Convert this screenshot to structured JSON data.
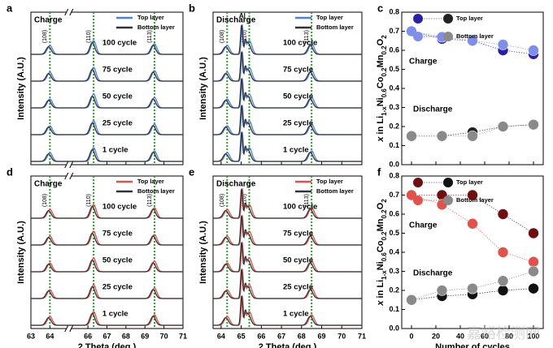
{
  "chart_data": [
    {
      "panel_label": "a",
      "type": "xrd",
      "title": "Charge",
      "ylabel": "Intensity (A.U.)",
      "xlim": [
        63,
        71
      ],
      "xticks": [
        63,
        64,
        66,
        67,
        68,
        69,
        70,
        71
      ],
      "xtick_labels": false,
      "axis_break": 65,
      "series": [
        {
          "name": "Top layer",
          "color": "#4f7fe0"
        },
        {
          "name": "Bottom layer",
          "color": "#333333"
        }
      ],
      "cycles": [
        "100 cycle",
        "75 cycle",
        "50 cycle",
        "25 cycle",
        "1 cycle"
      ],
      "peaks": [
        {
          "label": "(108)",
          "position": 64
        },
        {
          "label": "(110)",
          "position": 66.3
        },
        {
          "label": "(113)",
          "position": 69.5
        }
      ],
      "reference_color": "#2ca02c"
    },
    {
      "panel_label": "b",
      "type": "xrd",
      "title": "Discharge",
      "ylabel": "Intensity (A.U.)",
      "xlim": [
        63.6,
        71
      ],
      "xticks": [
        64,
        65,
        66,
        67,
        68,
        69,
        70,
        71
      ],
      "xtick_labels": false,
      "al_label": "Al",
      "al_position": 65.05,
      "series": [
        {
          "name": "Top layer",
          "color": "#4f7fe0"
        },
        {
          "name": "Bottom layer",
          "color": "#333333"
        }
      ],
      "cycles": [
        "100 cycle",
        "75 cycle",
        "50 cycle",
        "25 cycle",
        "1 cycle"
      ],
      "peaks": [
        {
          "label": "(108)",
          "position": 64.3
        },
        {
          "label": "(110)",
          "position": 65.4
        },
        {
          "label": "(113)",
          "position": 68.5
        }
      ],
      "reference_color": "#2ca02c"
    },
    {
      "panel_label": "c",
      "type": "line",
      "ylabel_parts": [
        "x",
        " in Li",
        "1-x",
        "Ni",
        "0.6",
        "Co",
        "0.2",
        "Mn",
        "0.2",
        "O",
        "2"
      ],
      "x": [
        0,
        25,
        50,
        75,
        100
      ],
      "xlim": [
        -8,
        108
      ],
      "xticks": [
        0,
        20,
        40,
        60,
        80,
        100
      ],
      "xtick_labels": false,
      "ylim": [
        0,
        0.8
      ],
      "yticks": [
        {
          "value": 0,
          "label": "0.0"
        },
        {
          "value": 0.1,
          "label": "0.1"
        },
        {
          "value": 0.2,
          "label": "0.2"
        },
        {
          "value": 0.3,
          "label": "0.3"
        },
        {
          "value": 0.4,
          "label": "0.4"
        },
        {
          "value": 0.5,
          "label": "0.5"
        },
        {
          "value": 0.6,
          "label": "0.6"
        },
        {
          "value": 0.7,
          "label": "0.7"
        },
        {
          "value": 0.8,
          "label": "0.8"
        }
      ],
      "annotations": [
        "Charge",
        "Discharge"
      ],
      "series": [
        {
          "name": "Top layer",
          "color": "#2b1fa8",
          "values": [
            0.7,
            0.66,
            0.65,
            0.6,
            0.58
          ]
        },
        {
          "name": "Bottom layer",
          "color": "#7f8fe8",
          "values": [
            0.7,
            0.67,
            0.65,
            0.63,
            0.6
          ]
        },
        {
          "color": "#222222",
          "values": [
            0.15,
            0.15,
            0.17,
            0.2,
            0.21
          ]
        },
        {
          "color": "#8a8a8a",
          "values": [
            0.15,
            0.15,
            0.15,
            0.2,
            0.21
          ]
        }
      ]
    },
    {
      "panel_label": "d",
      "type": "xrd",
      "title": "Charge",
      "ylabel": "Intensity (A.U.)",
      "xlabel": "2 Theta (deg.)",
      "xlim": [
        63,
        71
      ],
      "xticks": [
        63,
        64,
        66,
        67,
        68,
        69,
        70,
        71
      ],
      "xtick_labels": true,
      "axis_break": 65,
      "series": [
        {
          "name": "Top layer",
          "color": "#d9534f"
        },
        {
          "name": "Bottom layer",
          "color": "#333333"
        }
      ],
      "cycles": [
        "100 cycle",
        "75 cycle",
        "50 cycle",
        "25 cycle",
        "1 cycle"
      ],
      "peaks": [
        {
          "label": "(108)",
          "position": 64
        },
        {
          "label": "(110)",
          "position": 66.3
        },
        {
          "label": "(113)",
          "position": 69.5
        }
      ],
      "reference_color": "#2ca02c"
    },
    {
      "panel_label": "e",
      "type": "xrd",
      "title": "Discharge",
      "ylabel": "Intensity (A.U.)",
      "xlabel": "2 Theta (deg.)",
      "xlim": [
        63.6,
        71
      ],
      "xticks": [
        64,
        65,
        66,
        67,
        68,
        69,
        70,
        71
      ],
      "xtick_labels": true,
      "series": [
        {
          "name": "Top layer",
          "color": "#d9534f"
        },
        {
          "name": "Bottom layer",
          "color": "#333333"
        }
      ],
      "al_position": 65.05,
      "cycles": [
        "100 cycle",
        "75 cycle",
        "50 cycle",
        "25 cycle",
        "1 cycle"
      ],
      "peaks": [
        {
          "label": "(108)",
          "position": 64.3
        },
        {
          "label": "(110)",
          "position": 65.4
        },
        {
          "label": "(113)",
          "position": 68.5
        }
      ],
      "reference_color": "#2ca02c"
    },
    {
      "panel_label": "f",
      "type": "line",
      "ylabel_parts": [
        "x",
        " in Li",
        "1-x",
        "Ni",
        "0.6",
        "Co",
        "0.2",
        "Mn",
        "0.2",
        "O",
        "2"
      ],
      "xlabel": "Number of cycles",
      "x": [
        0,
        25,
        50,
        75,
        100
      ],
      "xlim": [
        -8,
        108
      ],
      "xticks": [
        0,
        20,
        40,
        60,
        80,
        100
      ],
      "xtick_labels": true,
      "ylim": [
        0,
        0.8
      ],
      "yticks": [
        {
          "value": 0,
          "label": "0.0"
        },
        {
          "value": 0.1,
          "label": "0.1"
        },
        {
          "value": 0.2,
          "label": "0.2"
        },
        {
          "value": 0.3,
          "label": "0.3"
        },
        {
          "value": 0.4,
          "label": "0.4"
        },
        {
          "value": 0.5,
          "label": "0.5"
        },
        {
          "value": 0.6,
          "label": "0.6"
        },
        {
          "value": 0.7,
          "label": "0.7"
        },
        {
          "value": 0.8,
          "label": "0.8"
        }
      ],
      "annotations": [
        "Charge",
        "Discharge"
      ],
      "series": [
        {
          "name": "Top layer",
          "color": "#6e0f12",
          "values": [
            0.7,
            0.7,
            0.7,
            0.6,
            0.5
          ]
        },
        {
          "name": "Bottom layer",
          "color": "#e0524c",
          "values": [
            0.7,
            0.65,
            0.55,
            0.4,
            0.35
          ]
        },
        {
          "color": "#111111",
          "values": [
            0.15,
            0.17,
            0.18,
            0.2,
            0.21
          ]
        },
        {
          "color": "#8a8a8a",
          "values": [
            0.15,
            0.2,
            0.21,
            0.25,
            0.3
          ]
        }
      ]
    }
  ],
  "watermark": "嘉峪检测网"
}
